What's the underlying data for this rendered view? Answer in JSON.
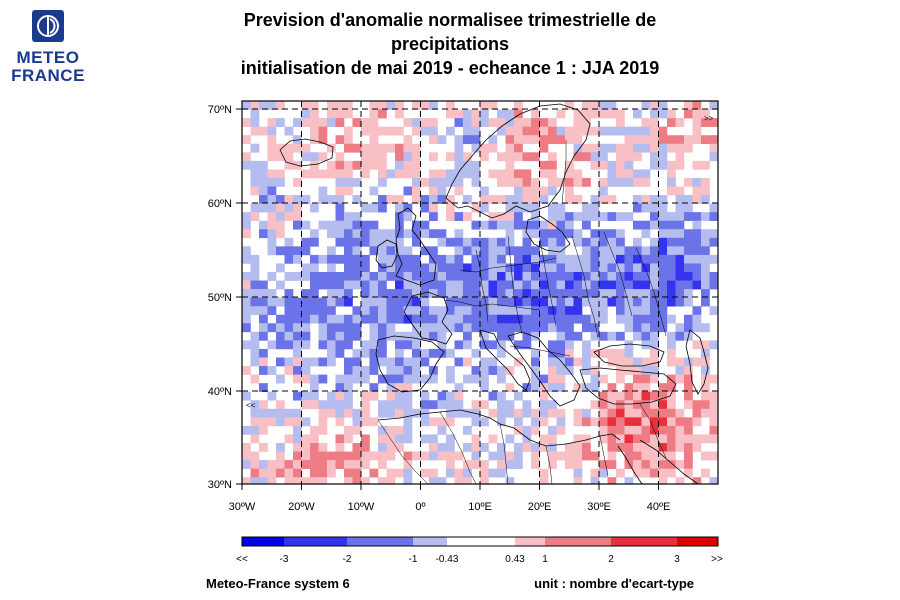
{
  "logo": {
    "line1": "METEO",
    "line2": "FRANCE",
    "brand_color": "#1a3a8f"
  },
  "title": {
    "line1": "Prevision d'anomalie normalisee trimestrielle de",
    "line2": "precipitations",
    "line3": "initialisation de mai 2019  -  echeance 1 : JJA 2019"
  },
  "map": {
    "lon_ticks": [
      "30ºW",
      "20ºW",
      "10ºW",
      "0º",
      "10ºE",
      "20ºE",
      "30ºE",
      "40ºE"
    ],
    "lat_ticks": [
      "70ºN",
      "60ºN",
      "50ºN",
      "40ºN",
      "30ºN"
    ],
    "gridlines": "dashed"
  },
  "colorbar": {
    "labels": [
      "<<",
      "-3",
      "-2",
      "-1",
      "-0.43",
      "0.43",
      "1",
      "2",
      "3",
      ">>"
    ],
    "colors": [
      "#0000e6",
      "#3333f0",
      "#6a73e8",
      "#b4bcf0",
      "#ffffff",
      "#f8c0c4",
      "#ee7c84",
      "#e8303c",
      "#e00000"
    ]
  },
  "footer": {
    "model": "Meteo-France system 6",
    "unit": "unit : nombre d'ecart-type"
  }
}
